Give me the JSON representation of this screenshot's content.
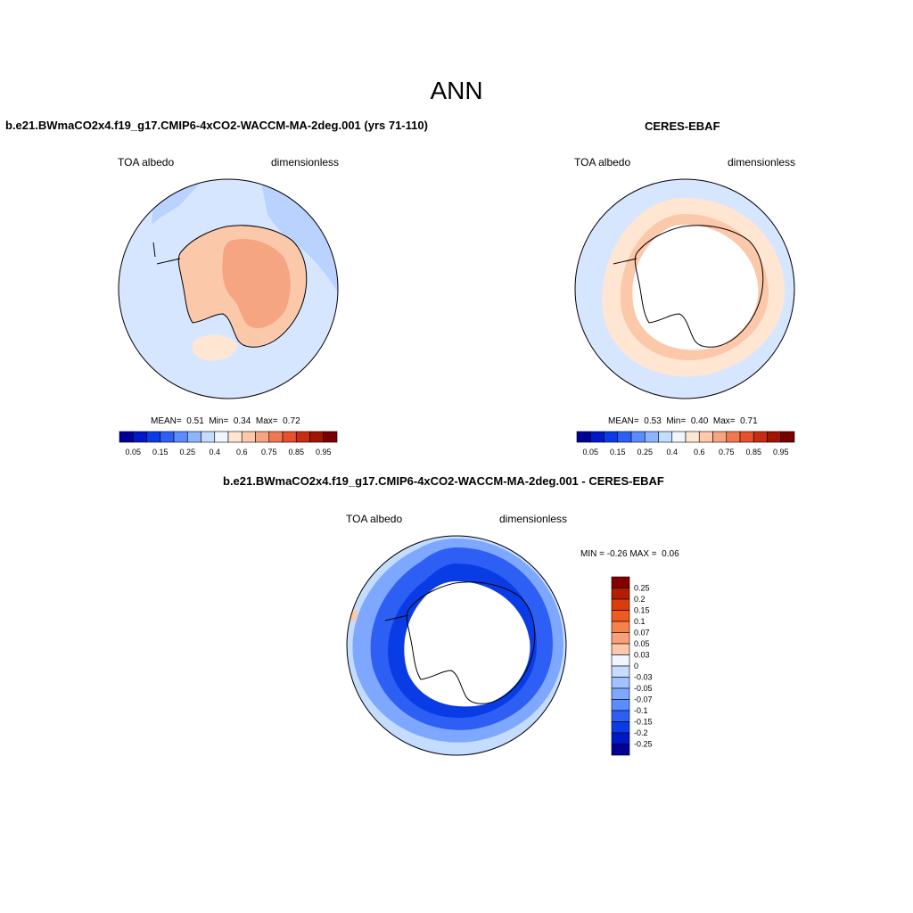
{
  "page": {
    "title": "ANN"
  },
  "panels": [
    {
      "title": "b.e21.BWmaCO2x4.f19_g17.CMIP6-4xCO2-WACCM-MA-2deg.001 (yrs 71-110)",
      "left_label": "TOA albedo",
      "right_label": "dimensionless",
      "stats": {
        "mean_label": "MEAN=",
        "mean": "0.51",
        "min_label": "Min=",
        "min": "0.34",
        "max_label": "Max=",
        "max": "0.72"
      }
    },
    {
      "title": "CERES-EBAF",
      "left_label": "TOA albedo",
      "right_label": "dimensionless",
      "stats": {
        "mean_label": "MEAN=",
        "mean": "0.53",
        "min_label": "Min=",
        "min": "0.40",
        "max_label": "Max=",
        "max": "0.71"
      }
    },
    {
      "title": "b.e21.BWmaCO2x4.f19_g17.CMIP6-4xCO2-WACCM-MA-2deg.001 - CERES-EBAF",
      "left_label": "TOA albedo",
      "right_label": "dimensionless",
      "stats": {
        "min_label": "MIN =",
        "min": "-0.26",
        "max_label": "MAX =",
        "max": "0.06"
      }
    }
  ],
  "colorbars": {
    "absolute": {
      "colors": [
        "#000096",
        "#0019c8",
        "#0a3ce6",
        "#2d5ff5",
        "#5a8cff",
        "#8cb4ff",
        "#c3dcff",
        "#f0f5ff",
        "#ffe6d2",
        "#ffc8aa",
        "#f5a582",
        "#f07850",
        "#e6502d",
        "#c82d14",
        "#a01400",
        "#780000"
      ],
      "ticks": [
        "0.05",
        "0.15",
        "0.25",
        "0.4",
        "0.6",
        "0.75",
        "0.85",
        "0.95"
      ]
    },
    "difference": {
      "colors": [
        "#820000",
        "#b41e00",
        "#dc3c0a",
        "#f05a1e",
        "#f5824b",
        "#faa078",
        "#fcc8aa",
        "#f0f5ff",
        "#c3dcff",
        "#a0c3ff",
        "#7ea7ff",
        "#5a8cff",
        "#2d5ff5",
        "#0a3ce6",
        "#0019c8",
        "#000096"
      ],
      "ticks": [
        "0.25",
        "0.2",
        "0.15",
        "0.1",
        "0.07",
        "0.05",
        "0.03",
        "0",
        "-0.03",
        "-0.05",
        "-0.07",
        "-0.1",
        "-0.15",
        "-0.2",
        "-0.25"
      ]
    }
  },
  "map_colors": {
    "ocean_light": "#d7e6ff",
    "ocean_mid": "#b9d2ff",
    "land_light": "#fcc8aa",
    "land_mid": "#f5a582",
    "obs_ring": "#ffe6d2",
    "obs_ring2": "#fcc8aa",
    "diff_dark": "#0a3ce6",
    "diff_mid": "#2d5ff5",
    "diff_light": "#7ea7ff",
    "diff_pale": "#c3dcff",
    "diff_pos": "#fcc8aa"
  }
}
